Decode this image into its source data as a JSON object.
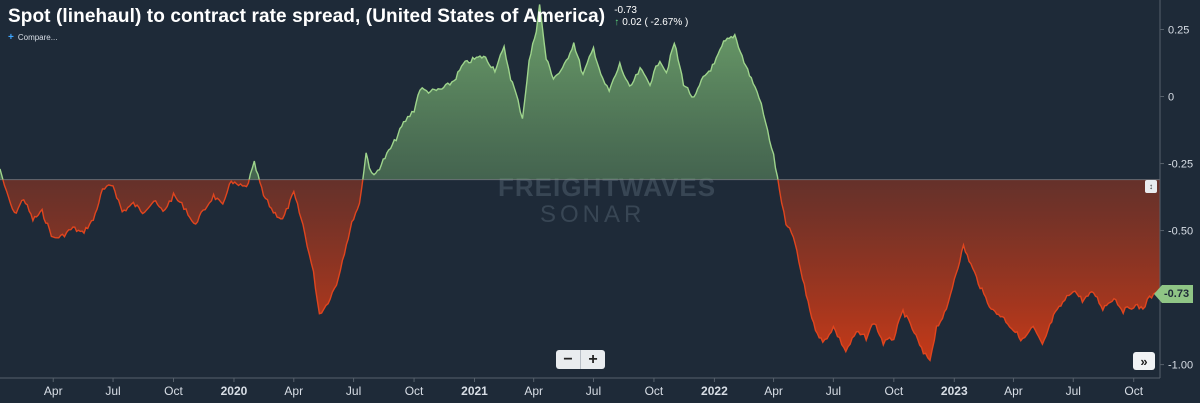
{
  "header": {
    "title": "Spot (linehaul) to contract rate spread, (United States of America)",
    "last_value": "-0.73",
    "change_arrow": "↑",
    "change_text": "0.02 ( -2.67% )",
    "compare_label": "Compare..."
  },
  "watermark": {
    "brand_top": "FREIGHTWAVES",
    "brand_bottom": "SONAR"
  },
  "controls": {
    "zoom_out": "−",
    "zoom_in": "+",
    "expand": "»",
    "scale_handle": "↕",
    "last_value_badge": "-0.73"
  },
  "colors": {
    "background": "#1e2a38",
    "positive_line": "#9ed48c",
    "negative_line": "#e0451e",
    "positive_fill": "#6fa86a",
    "negative_fill": "#c8381a",
    "baseline": "#8a9098"
  },
  "chart_data": {
    "type": "area",
    "title": "Spot (linehaul) to contract rate spread, (United States of America)",
    "baseline": -0.31,
    "ylim": [
      -1.05,
      0.36
    ],
    "y_ticks": [
      "0.25",
      "0",
      "-0.25",
      "-0.50",
      "-0.75",
      "-1.00"
    ],
    "y_tick_values": [
      0.25,
      0,
      -0.25,
      -0.5,
      -0.75,
      -1.0
    ],
    "x_range": [
      "2019-01-10",
      "2023-11-10"
    ],
    "x_ticks": [
      {
        "label": "Apr",
        "date": "2019-04-01",
        "bold": false
      },
      {
        "label": "Jul",
        "date": "2019-07-01",
        "bold": false
      },
      {
        "label": "Oct",
        "date": "2019-10-01",
        "bold": false
      },
      {
        "label": "2020",
        "date": "2020-01-01",
        "bold": true
      },
      {
        "label": "Apr",
        "date": "2020-04-01",
        "bold": false
      },
      {
        "label": "Jul",
        "date": "2020-07-01",
        "bold": false
      },
      {
        "label": "Oct",
        "date": "2020-10-01",
        "bold": false
      },
      {
        "label": "2021",
        "date": "2021-01-01",
        "bold": true
      },
      {
        "label": "Apr",
        "date": "2021-04-01",
        "bold": false
      },
      {
        "label": "Jul",
        "date": "2021-07-01",
        "bold": false
      },
      {
        "label": "Oct",
        "date": "2021-10-01",
        "bold": false
      },
      {
        "label": "2022",
        "date": "2022-01-01",
        "bold": true
      },
      {
        "label": "Apr",
        "date": "2022-04-01",
        "bold": false
      },
      {
        "label": "Jul",
        "date": "2022-07-01",
        "bold": false
      },
      {
        "label": "Oct",
        "date": "2022-10-01",
        "bold": false
      },
      {
        "label": "2023",
        "date": "2023-01-01",
        "bold": true
      },
      {
        "label": "Apr",
        "date": "2023-04-01",
        "bold": false
      },
      {
        "label": "Jul",
        "date": "2023-07-01",
        "bold": false
      },
      {
        "label": "Oct",
        "date": "2023-10-01",
        "bold": false
      }
    ],
    "series": [
      {
        "values": [
          [
            "2019-01-10",
            -0.27
          ],
          [
            "2019-01-20",
            -0.36
          ],
          [
            "2019-02-01",
            -0.44
          ],
          [
            "2019-02-15",
            -0.38
          ],
          [
            "2019-03-01",
            -0.46
          ],
          [
            "2019-03-15",
            -0.43
          ],
          [
            "2019-04-01",
            -0.53
          ],
          [
            "2019-04-15",
            -0.52
          ],
          [
            "2019-05-01",
            -0.49
          ],
          [
            "2019-05-15",
            -0.51
          ],
          [
            "2019-06-01",
            -0.46
          ],
          [
            "2019-06-15",
            -0.35
          ],
          [
            "2019-07-01",
            -0.33
          ],
          [
            "2019-07-15",
            -0.43
          ],
          [
            "2019-08-01",
            -0.4
          ],
          [
            "2019-08-15",
            -0.43
          ],
          [
            "2019-09-01",
            -0.39
          ],
          [
            "2019-09-15",
            -0.43
          ],
          [
            "2019-10-01",
            -0.37
          ],
          [
            "2019-10-20",
            -0.42
          ],
          [
            "2019-11-01",
            -0.48
          ],
          [
            "2019-11-15",
            -0.43
          ],
          [
            "2019-12-01",
            -0.37
          ],
          [
            "2019-12-15",
            -0.41
          ],
          [
            "2019-12-25",
            -0.32
          ],
          [
            "2020-01-05",
            -0.33
          ],
          [
            "2020-01-20",
            -0.34
          ],
          [
            "2020-02-01",
            -0.25
          ],
          [
            "2020-02-15",
            -0.37
          ],
          [
            "2020-03-01",
            -0.43
          ],
          [
            "2020-03-15",
            -0.46
          ],
          [
            "2020-04-01",
            -0.36
          ],
          [
            "2020-04-15",
            -0.48
          ],
          [
            "2020-05-01",
            -0.66
          ],
          [
            "2020-05-10",
            -0.81
          ],
          [
            "2020-05-20",
            -0.78
          ],
          [
            "2020-06-05",
            -0.7
          ],
          [
            "2020-06-20",
            -0.55
          ],
          [
            "2020-07-01",
            -0.45
          ],
          [
            "2020-07-10",
            -0.4
          ],
          [
            "2020-07-20",
            -0.21
          ],
          [
            "2020-07-25",
            -0.26
          ],
          [
            "2020-08-01",
            -0.3
          ],
          [
            "2020-08-15",
            -0.24
          ],
          [
            "2020-09-01",
            -0.17
          ],
          [
            "2020-09-15",
            -0.1
          ],
          [
            "2020-10-01",
            -0.05
          ],
          [
            "2020-10-10",
            0.03
          ],
          [
            "2020-10-20",
            0.02
          ],
          [
            "2020-11-01",
            0.02
          ],
          [
            "2020-11-15",
            0.03
          ],
          [
            "2020-12-01",
            0.06
          ],
          [
            "2020-12-15",
            0.12
          ],
          [
            "2021-01-01",
            0.14
          ],
          [
            "2021-01-15",
            0.15
          ],
          [
            "2021-02-01",
            0.1
          ],
          [
            "2021-02-15",
            0.18
          ],
          [
            "2021-02-25",
            0.07
          ],
          [
            "2021-03-05",
            0.01
          ],
          [
            "2021-03-15",
            -0.08
          ],
          [
            "2021-03-25",
            0.13
          ],
          [
            "2021-04-05",
            0.25
          ],
          [
            "2021-04-10",
            0.34
          ],
          [
            "2021-04-20",
            0.14
          ],
          [
            "2021-05-01",
            0.07
          ],
          [
            "2021-05-15",
            0.1
          ],
          [
            "2021-06-01",
            0.2
          ],
          [
            "2021-06-15",
            0.08
          ],
          [
            "2021-07-01",
            0.18
          ],
          [
            "2021-07-15",
            0.06
          ],
          [
            "2021-07-25",
            0.02
          ],
          [
            "2021-08-10",
            0.12
          ],
          [
            "2021-08-25",
            0.03
          ],
          [
            "2021-09-10",
            0.1
          ],
          [
            "2021-09-25",
            0.05
          ],
          [
            "2021-10-10",
            0.14
          ],
          [
            "2021-10-20",
            0.09
          ],
          [
            "2021-11-01",
            0.2
          ],
          [
            "2021-11-15",
            0.05
          ],
          [
            "2021-12-01",
            -0.01
          ],
          [
            "2021-12-15",
            0.07
          ],
          [
            "2022-01-01",
            0.12
          ],
          [
            "2022-01-15",
            0.2
          ],
          [
            "2022-02-01",
            0.23
          ],
          [
            "2022-02-15",
            0.13
          ],
          [
            "2022-03-01",
            0.05
          ],
          [
            "2022-03-10",
            0.0
          ],
          [
            "2022-03-20",
            -0.1
          ],
          [
            "2022-04-01",
            -0.22
          ],
          [
            "2022-04-10",
            -0.35
          ],
          [
            "2022-04-20",
            -0.48
          ],
          [
            "2022-05-01",
            -0.52
          ],
          [
            "2022-05-15",
            -0.68
          ],
          [
            "2022-06-01",
            -0.85
          ],
          [
            "2022-06-15",
            -0.92
          ],
          [
            "2022-07-01",
            -0.86
          ],
          [
            "2022-07-20",
            -0.95
          ],
          [
            "2022-08-05",
            -0.88
          ],
          [
            "2022-08-20",
            -0.9
          ],
          [
            "2022-09-01",
            -0.84
          ],
          [
            "2022-09-15",
            -0.92
          ],
          [
            "2022-10-01",
            -0.9
          ],
          [
            "2022-10-15",
            -0.8
          ],
          [
            "2022-11-01",
            -0.88
          ],
          [
            "2022-11-15",
            -0.96
          ],
          [
            "2022-11-25",
            -0.98
          ],
          [
            "2022-12-05",
            -0.86
          ],
          [
            "2022-12-20",
            -0.8
          ],
          [
            "2023-01-01",
            -0.68
          ],
          [
            "2023-01-15",
            -0.56
          ],
          [
            "2023-02-01",
            -0.66
          ],
          [
            "2023-02-15",
            -0.74
          ],
          [
            "2023-03-01",
            -0.8
          ],
          [
            "2023-03-15",
            -0.82
          ],
          [
            "2023-04-01",
            -0.87
          ],
          [
            "2023-04-15",
            -0.91
          ],
          [
            "2023-05-01",
            -0.86
          ],
          [
            "2023-05-15",
            -0.93
          ],
          [
            "2023-06-01",
            -0.82
          ],
          [
            "2023-06-15",
            -0.77
          ],
          [
            "2023-07-01",
            -0.72
          ],
          [
            "2023-07-15",
            -0.76
          ],
          [
            "2023-08-01",
            -0.73
          ],
          [
            "2023-08-15",
            -0.79
          ],
          [
            "2023-09-01",
            -0.75
          ],
          [
            "2023-09-15",
            -0.8
          ],
          [
            "2023-10-01",
            -0.78
          ],
          [
            "2023-10-15",
            -0.79
          ],
          [
            "2023-10-25",
            -0.75
          ],
          [
            "2023-11-10",
            -0.73
          ]
        ]
      }
    ],
    "grid": false,
    "legend": "none"
  }
}
